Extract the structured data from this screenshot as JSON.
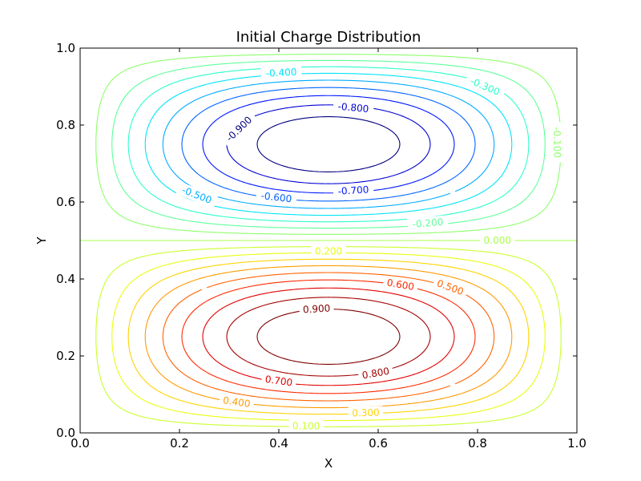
{
  "chart_data": {
    "type": "contour",
    "title": "Initial Charge Distribution",
    "xlabel": "X",
    "ylabel": "Y",
    "xlim": [
      0.0,
      1.0
    ],
    "ylim": [
      0.0,
      1.0
    ],
    "x_ticks": [
      "0.0",
      "0.2",
      "0.4",
      "0.6",
      "0.8",
      "1.0"
    ],
    "y_ticks": [
      "0.0",
      "0.2",
      "0.4",
      "0.6",
      "0.8",
      "1.0"
    ],
    "function": "sin(pi*x)*sin(2*pi*y)",
    "colormap": "jet",
    "grid": false,
    "levels": [
      -0.9,
      -0.8,
      -0.7,
      -0.6,
      -0.5,
      -0.4,
      -0.3,
      -0.2,
      -0.1,
      0.0,
      0.1,
      0.2,
      0.3,
      0.4,
      0.5,
      0.6,
      0.7,
      0.8,
      0.9
    ],
    "level_colors": [
      "#00007f",
      "#0000d1",
      "#0018ff",
      "#0064ff",
      "#00acff",
      "#00e4f7",
      "#2cffca",
      "#5dff9a",
      "#8dff6a",
      "#a9ff4d",
      "#caff2c",
      "#e8ff0f",
      "#ffd300",
      "#ff9b00",
      "#ff6200",
      "#ff2900",
      "#e40000",
      "#a40000",
      "#7f0000"
    ],
    "contour_labels": [
      {
        "text": "-0.900",
        "level": -0.9,
        "x": 0.32,
        "y": 0.79
      },
      {
        "text": "-0.800",
        "level": -0.8,
        "x": 0.55,
        "y": 0.845
      },
      {
        "text": "-0.700",
        "level": -0.7,
        "x": 0.55,
        "y": 0.63
      },
      {
        "text": "-0.600",
        "level": -0.6,
        "x": 0.395,
        "y": 0.612
      },
      {
        "text": "-0.500",
        "level": -0.5,
        "x": 0.235,
        "y": 0.618
      },
      {
        "text": "-0.400",
        "level": -0.4,
        "x": 0.405,
        "y": 0.936
      },
      {
        "text": "-0.300",
        "level": -0.3,
        "x": 0.815,
        "y": 0.9
      },
      {
        "text": "-0.200",
        "level": -0.2,
        "x": 0.7,
        "y": 0.545
      },
      {
        "text": "-0.100",
        "level": -0.1,
        "x": 0.96,
        "y": 0.755
      },
      {
        "text": "0.000",
        "level": 0.0,
        "x": 0.84,
        "y": 0.5
      },
      {
        "text": "0.900",
        "level": 0.9,
        "x": 0.476,
        "y": 0.322
      },
      {
        "text": "0.800",
        "level": 0.8,
        "x": 0.595,
        "y": 0.155
      },
      {
        "text": "0.700",
        "level": 0.7,
        "x": 0.4,
        "y": 0.135
      },
      {
        "text": "0.600",
        "level": 0.6,
        "x": 0.645,
        "y": 0.385
      },
      {
        "text": "0.500",
        "level": 0.5,
        "x": 0.745,
        "y": 0.378
      },
      {
        "text": "0.400",
        "level": 0.4,
        "x": 0.315,
        "y": 0.08
      },
      {
        "text": "0.300",
        "level": 0.3,
        "x": 0.575,
        "y": 0.052
      },
      {
        "text": "0.200",
        "level": 0.2,
        "x": 0.5,
        "y": 0.472
      },
      {
        "text": "0.100",
        "level": 0.1,
        "x": 0.455,
        "y": 0.018
      }
    ]
  }
}
